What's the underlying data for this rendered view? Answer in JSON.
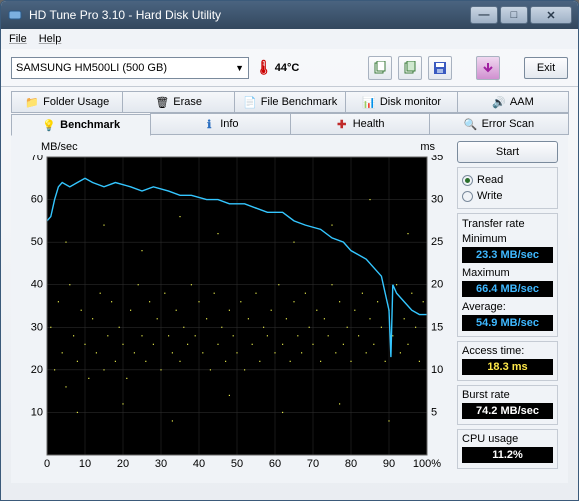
{
  "window": {
    "title": "HD Tune Pro 3.10 - Hard Disk Utility"
  },
  "menu": {
    "file": "File",
    "help": "Help"
  },
  "toolbar": {
    "drive": "SAMSUNG HM500LI (500 GB)",
    "temperature": "44°C",
    "exit": "Exit"
  },
  "tabs_row1": {
    "folder": "Folder Usage",
    "erase": "Erase",
    "filebench": "File Benchmark",
    "diskmon": "Disk monitor",
    "aam": "AAM"
  },
  "tabs_row2": {
    "benchmark": "Benchmark",
    "info": "Info",
    "health": "Health",
    "errorscan": "Error Scan"
  },
  "chart": {
    "y1_label": "MB/sec",
    "y2_label": "ms",
    "y1_ticks": [
      10,
      20,
      30,
      40,
      50,
      60,
      70
    ],
    "y2_ticks": [
      5,
      10,
      15,
      20,
      25,
      30,
      35
    ],
    "x_ticks": [
      0,
      10,
      20,
      30,
      40,
      50,
      60,
      70,
      80,
      90,
      "100%"
    ],
    "bg_color": "#000000",
    "grid_color": "#2b2b2b",
    "line_color": "#34c6ff",
    "dot_color": "#e4e84a",
    "transfer_line": [
      [
        0,
        55
      ],
      [
        1,
        56
      ],
      [
        2,
        60
      ],
      [
        3,
        63
      ],
      [
        4,
        64
      ],
      [
        6,
        63
      ],
      [
        8,
        64
      ],
      [
        10,
        65
      ],
      [
        12,
        64
      ],
      [
        15,
        63
      ],
      [
        18,
        64
      ],
      [
        22,
        63
      ],
      [
        25,
        62
      ],
      [
        28,
        63
      ],
      [
        32,
        62
      ],
      [
        35,
        61
      ],
      [
        38,
        61
      ],
      [
        42,
        60
      ],
      [
        45,
        60
      ],
      [
        48,
        59
      ],
      [
        52,
        59
      ],
      [
        55,
        58
      ],
      [
        58,
        57
      ],
      [
        62,
        57
      ],
      [
        65,
        55
      ],
      [
        68,
        54
      ],
      [
        72,
        53
      ],
      [
        75,
        51
      ],
      [
        78,
        50
      ],
      [
        80,
        48
      ],
      [
        82,
        47
      ],
      [
        84,
        46
      ],
      [
        86,
        44
      ],
      [
        88,
        42
      ],
      [
        89,
        38
      ],
      [
        90,
        34
      ],
      [
        90.5,
        23
      ],
      [
        91,
        40
      ],
      [
        92,
        38
      ],
      [
        94,
        36
      ],
      [
        96,
        34
      ],
      [
        98,
        33
      ],
      [
        100,
        33
      ]
    ],
    "access_dots": [
      [
        1,
        15
      ],
      [
        2,
        10
      ],
      [
        3,
        18
      ],
      [
        4,
        12
      ],
      [
        5,
        8
      ],
      [
        6,
        20
      ],
      [
        7,
        14
      ],
      [
        8,
        11
      ],
      [
        9,
        17
      ],
      [
        10,
        13
      ],
      [
        11,
        9
      ],
      [
        12,
        16
      ],
      [
        13,
        12
      ],
      [
        14,
        19
      ],
      [
        15,
        10
      ],
      [
        16,
        14
      ],
      [
        17,
        18
      ],
      [
        18,
        11
      ],
      [
        19,
        15
      ],
      [
        20,
        13
      ],
      [
        21,
        9
      ],
      [
        22,
        17
      ],
      [
        23,
        12
      ],
      [
        24,
        20
      ],
      [
        25,
        14
      ],
      [
        26,
        11
      ],
      [
        27,
        18
      ],
      [
        28,
        13
      ],
      [
        29,
        16
      ],
      [
        30,
        10
      ],
      [
        31,
        19
      ],
      [
        32,
        14
      ],
      [
        33,
        12
      ],
      [
        34,
        17
      ],
      [
        35,
        11
      ],
      [
        36,
        15
      ],
      [
        37,
        13
      ],
      [
        38,
        20
      ],
      [
        39,
        14
      ],
      [
        40,
        18
      ],
      [
        41,
        12
      ],
      [
        42,
        16
      ],
      [
        43,
        10
      ],
      [
        44,
        19
      ],
      [
        45,
        13
      ],
      [
        46,
        15
      ],
      [
        47,
        11
      ],
      [
        48,
        17
      ],
      [
        49,
        14
      ],
      [
        50,
        12
      ],
      [
        51,
        18
      ],
      [
        52,
        10
      ],
      [
        53,
        16
      ],
      [
        54,
        13
      ],
      [
        55,
        19
      ],
      [
        56,
        11
      ],
      [
        57,
        15
      ],
      [
        58,
        14
      ],
      [
        59,
        17
      ],
      [
        60,
        12
      ],
      [
        61,
        20
      ],
      [
        62,
        13
      ],
      [
        63,
        16
      ],
      [
        64,
        11
      ],
      [
        65,
        18
      ],
      [
        66,
        14
      ],
      [
        67,
        12
      ],
      [
        68,
        19
      ],
      [
        69,
        15
      ],
      [
        70,
        13
      ],
      [
        71,
        17
      ],
      [
        72,
        11
      ],
      [
        73,
        16
      ],
      [
        74,
        14
      ],
      [
        75,
        20
      ],
      [
        76,
        12
      ],
      [
        77,
        18
      ],
      [
        78,
        13
      ],
      [
        79,
        15
      ],
      [
        80,
        11
      ],
      [
        81,
        17
      ],
      [
        82,
        14
      ],
      [
        83,
        19
      ],
      [
        84,
        12
      ],
      [
        85,
        16
      ],
      [
        86,
        13
      ],
      [
        87,
        18
      ],
      [
        88,
        15
      ],
      [
        89,
        11
      ],
      [
        90,
        17
      ],
      [
        91,
        14
      ],
      [
        92,
        20
      ],
      [
        93,
        12
      ],
      [
        94,
        16
      ],
      [
        95,
        13
      ],
      [
        96,
        19
      ],
      [
        97,
        15
      ],
      [
        98,
        11
      ],
      [
        99,
        18
      ],
      [
        5,
        25
      ],
      [
        15,
        27
      ],
      [
        25,
        24
      ],
      [
        35,
        28
      ],
      [
        45,
        26
      ],
      [
        55,
        29
      ],
      [
        65,
        25
      ],
      [
        75,
        27
      ],
      [
        85,
        30
      ],
      [
        95,
        26
      ],
      [
        8,
        5
      ],
      [
        20,
        6
      ],
      [
        33,
        4
      ],
      [
        48,
        7
      ],
      [
        62,
        5
      ],
      [
        77,
        6
      ],
      [
        90,
        4
      ]
    ]
  },
  "panel": {
    "start": "Start",
    "read": "Read",
    "write": "Write",
    "transfer_title": "Transfer rate",
    "min_label": "Minimum",
    "min_value": "23.3 MB/sec",
    "max_label": "Maximum",
    "max_value": "66.4 MB/sec",
    "avg_label": "Average:",
    "avg_value": "54.9 MB/sec",
    "access_label": "Access time:",
    "access_value": "18.3 ms",
    "burst_label": "Burst rate",
    "burst_value": "74.2 MB/sec",
    "cpu_label": "CPU usage",
    "cpu_value": "11.2%"
  }
}
